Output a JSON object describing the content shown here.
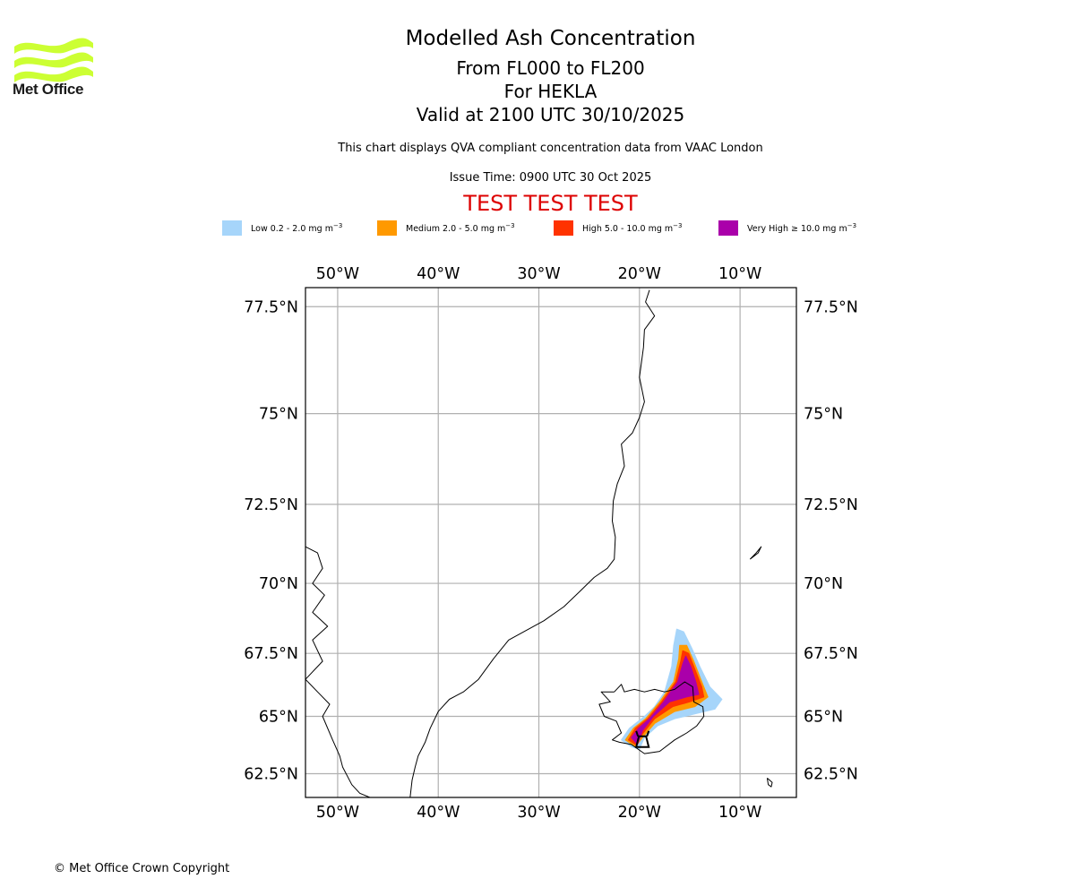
{
  "logo": {
    "name": "Met Office",
    "icon": "met-office-waves-logo",
    "color": "#ccff33"
  },
  "titles": {
    "main": "Modelled Ash Concentration",
    "levels": "From FL000 to FL200",
    "volcano": "For HEKLA",
    "valid": "Valid at 2100 UTC 30/10/2025"
  },
  "subtitle": "This chart displays QVA compliant concentration data from VAAC London",
  "issue_time": "Issue Time: 0900 UTC 30 Oct 2025",
  "test_banner": "TEST TEST TEST",
  "legend": [
    {
      "label": "Low 0.2 - 2.0 mg m",
      "unit_exp": "−3",
      "color": "#a6d5fa"
    },
    {
      "label": "Medium 2.0 - 5.0 mg m",
      "unit_exp": "−3",
      "color": "#ff9900"
    },
    {
      "label": "High 5.0 - 10.0 mg m",
      "unit_exp": "−3",
      "color": "#ff3300"
    },
    {
      "label": "Very High  ≥  10.0 mg m",
      "unit_exp": "−3",
      "color": "#aa00aa"
    }
  ],
  "copyright": "© Met Office Crown Copyright",
  "chart_data": {
    "type": "map",
    "title": "Modelled Ash Concentration",
    "extent": {
      "lon": [
        -53.2,
        -4.4
      ],
      "lat": [
        61.4,
        77.9
      ]
    },
    "grid": true,
    "lon_ticks": [
      -50,
      -40,
      -30,
      -20,
      -10
    ],
    "lon_tick_labels": [
      "50°W",
      "40°W",
      "30°W",
      "20°W",
      "10°W"
    ],
    "lat_ticks": [
      77.5,
      75,
      72.5,
      70,
      67.5,
      65,
      62.5
    ],
    "lat_tick_labels": [
      "77.5°N",
      "75°N",
      "72.5°N",
      "70°N",
      "67.5°N",
      "65°N",
      "62.5°N"
    ],
    "volcano": {
      "name": "HEKLA",
      "lon": -19.7,
      "lat": 64.0
    },
    "coastlines": [
      {
        "name": "greenland-east-coast",
        "points": [
          [
            -42.8,
            61.4
          ],
          [
            -42.6,
            62.2
          ],
          [
            -42.3,
            62.8
          ],
          [
            -42.0,
            63.3
          ],
          [
            -41.3,
            63.9
          ],
          [
            -40.8,
            64.5
          ],
          [
            -40.0,
            65.2
          ],
          [
            -38.9,
            65.7
          ],
          [
            -37.5,
            66.0
          ],
          [
            -36.0,
            66.5
          ],
          [
            -34.5,
            67.3
          ],
          [
            -33.0,
            68.0
          ],
          [
            -31.5,
            68.3
          ],
          [
            -29.5,
            68.7
          ],
          [
            -27.5,
            69.2
          ],
          [
            -26.0,
            69.7
          ],
          [
            -24.5,
            70.2
          ],
          [
            -23.2,
            70.5
          ],
          [
            -22.5,
            70.8
          ],
          [
            -22.4,
            71.5
          ],
          [
            -22.7,
            72.0
          ],
          [
            -22.6,
            72.6
          ],
          [
            -22.2,
            73.1
          ],
          [
            -21.5,
            73.6
          ],
          [
            -21.8,
            74.2
          ],
          [
            -20.7,
            74.5
          ],
          [
            -20.0,
            74.9
          ],
          [
            -19.5,
            75.3
          ],
          [
            -20.0,
            75.9
          ],
          [
            -19.6,
            76.6
          ],
          [
            -19.5,
            77.0
          ],
          [
            -18.5,
            77.3
          ],
          [
            -19.4,
            77.6
          ],
          [
            -19.0,
            77.85
          ]
        ]
      },
      {
        "name": "greenland-west-coast",
        "points": [
          [
            -53.2,
            71.2
          ],
          [
            -52.0,
            71.0
          ],
          [
            -51.5,
            70.5
          ],
          [
            -52.5,
            70.0
          ],
          [
            -51.3,
            69.6
          ],
          [
            -52.5,
            69.0
          ],
          [
            -51.0,
            68.5
          ],
          [
            -52.5,
            68.0
          ],
          [
            -51.5,
            67.2
          ],
          [
            -53.2,
            66.5
          ],
          [
            -52.0,
            66.0
          ],
          [
            -50.8,
            65.5
          ],
          [
            -51.5,
            65.0
          ],
          [
            -50.5,
            64.0
          ],
          [
            -49.8,
            63.3
          ],
          [
            -49.5,
            62.8
          ],
          [
            -48.6,
            62.0
          ],
          [
            -47.8,
            61.6
          ],
          [
            -46.8,
            61.4
          ]
        ]
      },
      {
        "name": "iceland",
        "points": [
          [
            -22.5,
            66.0
          ],
          [
            -21.8,
            66.3
          ],
          [
            -21.5,
            66.0
          ],
          [
            -20.5,
            66.1
          ],
          [
            -19.5,
            66.0
          ],
          [
            -18.5,
            66.1
          ],
          [
            -17.5,
            66.0
          ],
          [
            -16.5,
            66.1
          ],
          [
            -15.5,
            66.4
          ],
          [
            -14.7,
            66.2
          ],
          [
            -14.6,
            65.6
          ],
          [
            -13.7,
            65.4
          ],
          [
            -13.6,
            65.0
          ],
          [
            -14.3,
            64.6
          ],
          [
            -15.3,
            64.3
          ],
          [
            -16.5,
            64.0
          ],
          [
            -18.0,
            63.5
          ],
          [
            -19.5,
            63.4
          ],
          [
            -20.8,
            63.8
          ],
          [
            -22.0,
            63.9
          ],
          [
            -22.7,
            64.0
          ],
          [
            -21.8,
            64.3
          ],
          [
            -22.3,
            64.8
          ],
          [
            -23.5,
            65.0
          ],
          [
            -24.0,
            65.5
          ],
          [
            -22.9,
            65.6
          ],
          [
            -23.8,
            66.0
          ],
          [
            -22.5,
            66.0
          ]
        ]
      },
      {
        "name": "jan-mayen",
        "points": [
          [
            -9.0,
            70.8
          ],
          [
            -8.4,
            71.0
          ],
          [
            -7.9,
            71.2
          ],
          [
            -8.2,
            71.0
          ],
          [
            -9.0,
            70.8
          ]
        ]
      },
      {
        "name": "faroe-islands",
        "points": [
          [
            -7.3,
            62.3
          ],
          [
            -6.8,
            62.1
          ],
          [
            -6.9,
            61.9
          ],
          [
            -7.2,
            62.0
          ],
          [
            -7.3,
            62.3
          ]
        ]
      }
    ],
    "ash_contours": [
      {
        "level": "Low",
        "range_mg_m3": [
          0.2,
          2.0
        ],
        "color": "#a6d5fa",
        "points": [
          [
            -21.8,
            64.0
          ],
          [
            -21.0,
            64.5
          ],
          [
            -19.5,
            65.0
          ],
          [
            -18.5,
            65.4
          ],
          [
            -17.5,
            66.0
          ],
          [
            -16.8,
            67.0
          ],
          [
            -16.6,
            67.8
          ],
          [
            -16.3,
            68.4
          ],
          [
            -15.6,
            68.3
          ],
          [
            -14.8,
            67.7
          ],
          [
            -14.0,
            67.0
          ],
          [
            -13.0,
            66.2
          ],
          [
            -11.8,
            65.7
          ],
          [
            -12.5,
            65.3
          ],
          [
            -14.5,
            65.1
          ],
          [
            -16.5,
            64.9
          ],
          [
            -18.2,
            64.6
          ],
          [
            -19.5,
            64.1
          ],
          [
            -20.0,
            63.6
          ],
          [
            -20.8,
            63.7
          ],
          [
            -21.8,
            64.0
          ]
        ]
      },
      {
        "level": "Medium",
        "range_mg_m3": [
          2.0,
          5.0
        ],
        "color": "#ff9900",
        "points": [
          [
            -21.4,
            64.0
          ],
          [
            -20.6,
            64.5
          ],
          [
            -19.4,
            64.9
          ],
          [
            -18.0,
            65.6
          ],
          [
            -16.6,
            66.4
          ],
          [
            -16.1,
            67.3
          ],
          [
            -16.0,
            67.8
          ],
          [
            -15.3,
            67.8
          ],
          [
            -14.6,
            67.2
          ],
          [
            -13.9,
            66.5
          ],
          [
            -13.2,
            65.8
          ],
          [
            -14.5,
            65.4
          ],
          [
            -16.5,
            65.2
          ],
          [
            -18.5,
            64.7
          ],
          [
            -19.7,
            64.1
          ],
          [
            -20.4,
            63.7
          ],
          [
            -21.4,
            64.0
          ]
        ]
      },
      {
        "level": "High",
        "range_mg_m3": [
          5.0,
          10.0
        ],
        "color": "#ff3300",
        "points": [
          [
            -21.1,
            64.0
          ],
          [
            -20.4,
            64.5
          ],
          [
            -19.2,
            64.9
          ],
          [
            -17.8,
            65.6
          ],
          [
            -16.4,
            66.4
          ],
          [
            -15.9,
            67.2
          ],
          [
            -15.7,
            67.6
          ],
          [
            -15.1,
            67.5
          ],
          [
            -14.5,
            66.9
          ],
          [
            -13.8,
            66.2
          ],
          [
            -13.6,
            65.8
          ],
          [
            -15.0,
            65.6
          ],
          [
            -16.7,
            65.4
          ],
          [
            -18.5,
            64.9
          ],
          [
            -19.8,
            64.2
          ],
          [
            -20.4,
            63.8
          ],
          [
            -21.1,
            64.0
          ]
        ]
      },
      {
        "level": "Very High",
        "range_mg_m3": [
          10.0,
          null
        ],
        "color": "#aa00aa",
        "points": [
          [
            -20.8,
            64.1
          ],
          [
            -20.1,
            64.5
          ],
          [
            -19.0,
            64.9
          ],
          [
            -17.6,
            65.6
          ],
          [
            -16.2,
            66.4
          ],
          [
            -15.7,
            67.1
          ],
          [
            -15.4,
            67.4
          ],
          [
            -14.9,
            67.0
          ],
          [
            -14.4,
            66.4
          ],
          [
            -14.1,
            65.9
          ],
          [
            -15.3,
            65.8
          ],
          [
            -17.0,
            65.6
          ],
          [
            -18.6,
            65.0
          ],
          [
            -19.7,
            64.4
          ],
          [
            -20.2,
            63.8
          ],
          [
            -20.8,
            64.1
          ]
        ]
      }
    ]
  }
}
